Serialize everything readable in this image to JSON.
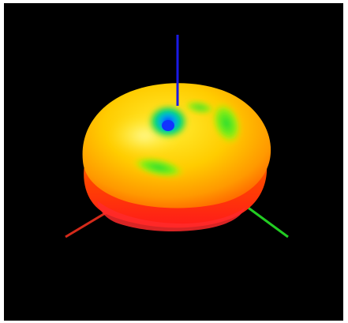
{
  "scene": {
    "background": "#000000",
    "frame": "#ffffff",
    "axes": {
      "z": {
        "color": "#1a1ae6"
      },
      "x": {
        "color": "#d42a1a"
      },
      "y": {
        "color": "#22cc22"
      }
    },
    "surface": {
      "shape": "3D radiation pattern surface",
      "colormap": [
        "#0033ff",
        "#00ddee",
        "#22dd22",
        "#bbee00",
        "#ffee00",
        "#ff9900",
        "#ff3300",
        "#ff1a1a"
      ]
    }
  }
}
